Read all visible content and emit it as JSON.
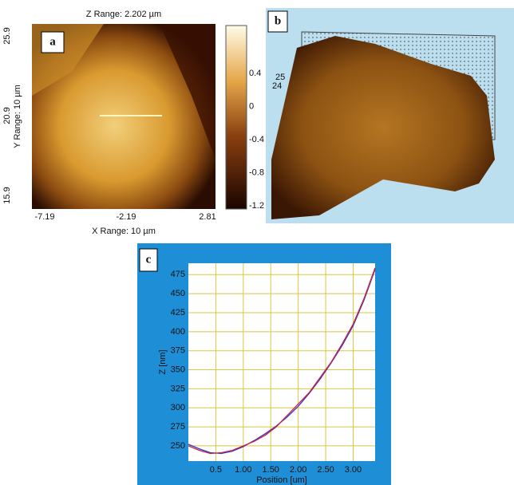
{
  "panel_a": {
    "label": "a",
    "z_range": "Z Range: 2.202 µm",
    "y_range": "Y Range: 10 µm",
    "x_range": "X Range: 10 µm",
    "x_ticks": [
      "-7.19",
      "-2.19",
      "2.81"
    ],
    "y_ticks": [
      "25.9",
      "20.9",
      "15.9"
    ],
    "colorbar_ticks": [
      "0.4",
      "0",
      "-0.4",
      "-0.8",
      "-1.2"
    ]
  },
  "panel_b": {
    "label": "b",
    "scale_labels": [
      "25",
      "24"
    ]
  },
  "chart_data": {
    "type": "line",
    "label": "c",
    "x_label": "Position [um]",
    "y_label": "Z [nm]",
    "x": [
      0,
      0.2,
      0.4,
      0.6,
      0.8,
      1.0,
      1.2,
      1.4,
      1.6,
      1.8,
      2.0,
      2.2,
      2.4,
      2.6,
      2.8,
      3.0,
      3.2,
      3.4
    ],
    "series": [
      {
        "color": "#3333cc",
        "values": [
          252,
          246,
          241,
          240,
          243,
          249,
          257,
          266,
          276,
          288,
          302,
          319,
          338,
          359,
          382,
          408,
          442,
          482
        ]
      },
      {
        "color": "#cc2244",
        "values": [
          250,
          244,
          240,
          241,
          244,
          250,
          256,
          264,
          275,
          290,
          305,
          320,
          340,
          360,
          384,
          410,
          444,
          484
        ]
      }
    ],
    "xlim": [
      0,
      3.4
    ],
    "ylim": [
      230,
      490
    ],
    "xticks": [
      0.5,
      {
        "value": 1,
        "label": "1.00"
      },
      {
        "value": 1.5,
        "label": "1.50"
      },
      {
        "value": 2,
        "label": "2.00"
      },
      {
        "value": 2.5,
        "label": "2.50"
      },
      {
        "value": 3,
        "label": "3.00"
      }
    ],
    "yticks": [
      250,
      275,
      300,
      325,
      350,
      375,
      400,
      425,
      450,
      475
    ],
    "grid": true,
    "grid_color": "#d8c840"
  }
}
